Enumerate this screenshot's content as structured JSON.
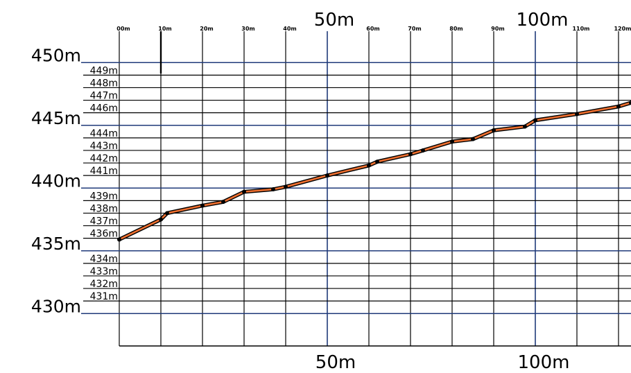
{
  "chart_data": {
    "type": "line",
    "title": "",
    "xlabel": "",
    "ylabel": "",
    "x_unit": "m",
    "y_unit": "m",
    "xlim": [
      0,
      123
    ],
    "ylim": [
      427.5,
      452.5
    ],
    "grid": true,
    "legend": "none",
    "x_minor_ticks": [
      "00m",
      "10m",
      "20m",
      "30m",
      "40m",
      "60m",
      "70m",
      "80m",
      "90m",
      "110m",
      "120m"
    ],
    "x_major_ticks_top": [
      "50m",
      "100m"
    ],
    "x_major_ticks_bottom": [
      "50m",
      "100m"
    ],
    "y_major_ticks": [
      "450m",
      "445m",
      "440m",
      "435m",
      "430m"
    ],
    "y_minor_ticks": [
      "449m",
      "448m",
      "447m",
      "446m",
      "444m",
      "443m",
      "442m",
      "441m",
      "439m",
      "438m",
      "437m",
      "436m",
      "434m",
      "433m",
      "432m",
      "431m"
    ],
    "colors": {
      "minor_grid": "#000000",
      "major_grid": "#1f3a7a",
      "profile_line": "#f07030",
      "profile_outline": "#000000",
      "points": "#000000"
    },
    "series": [
      {
        "name": "",
        "x": [
          0,
          10,
          11.5,
          20,
          25,
          30,
          37,
          40,
          50,
          60,
          62,
          70,
          73,
          80,
          85,
          90,
          97.5,
          100,
          110,
          120,
          123
        ],
        "y": [
          435.9,
          437.5,
          438.0,
          438.6,
          438.9,
          439.7,
          439.9,
          440.1,
          441.0,
          441.8,
          442.1,
          442.7,
          443.0,
          443.7,
          443.9,
          444.6,
          444.9,
          445.4,
          445.9,
          446.5,
          446.8
        ]
      }
    ]
  }
}
